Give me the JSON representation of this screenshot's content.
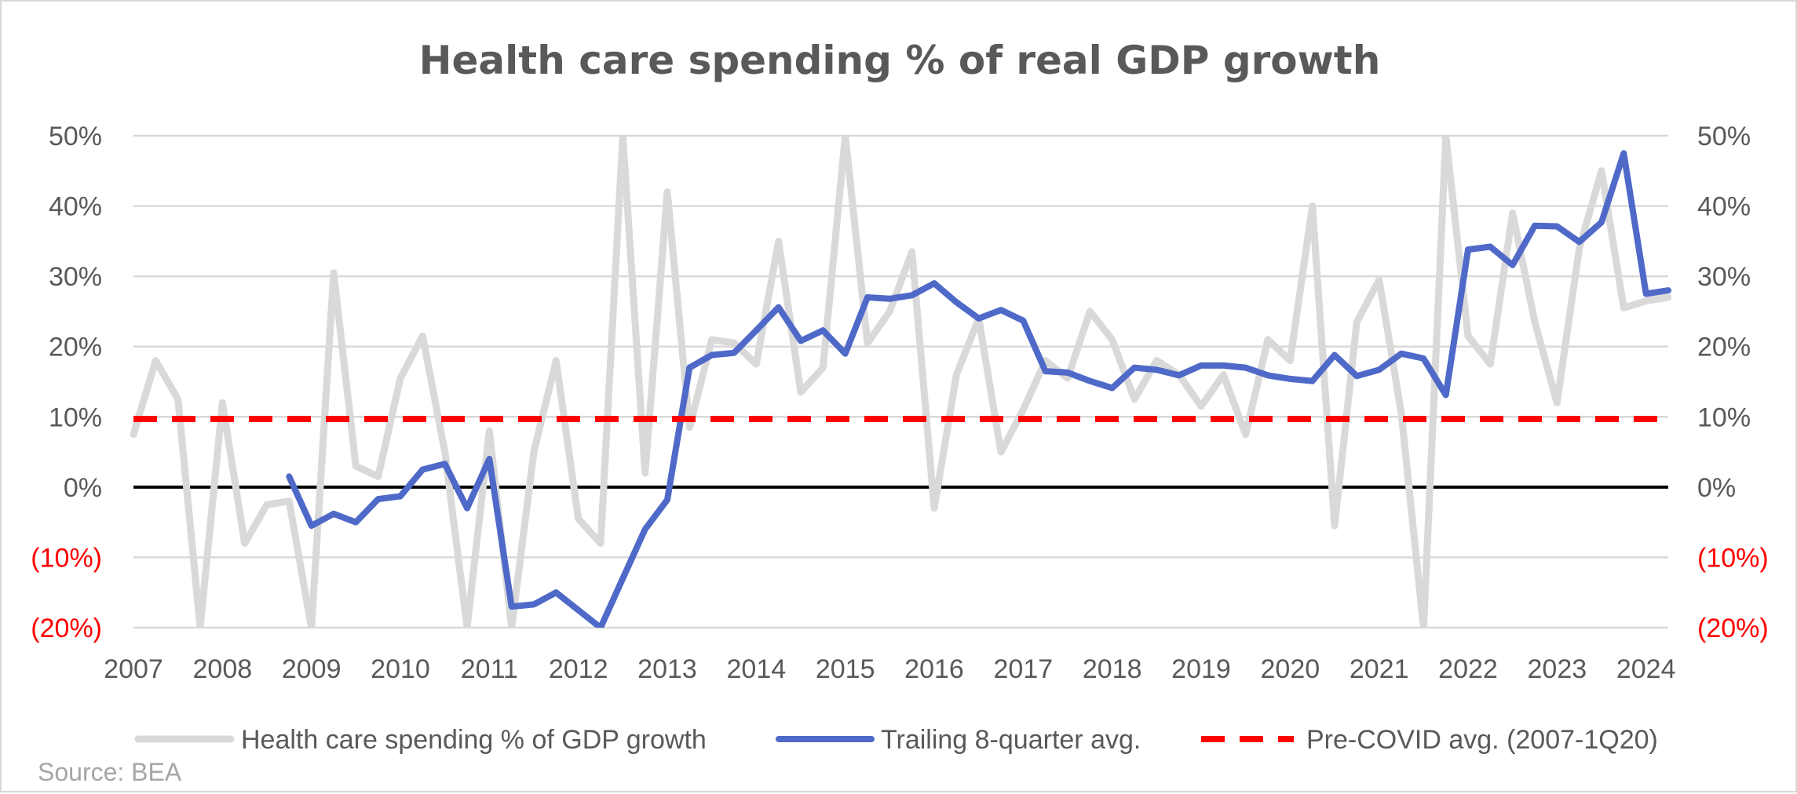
{
  "chart_data": {
    "type": "line",
    "title": "Health care spending % of real GDP growth",
    "source": "Source: BEA",
    "ylim": [
      -20,
      50
    ],
    "xlim": [
      2007,
      2024.25
    ],
    "y_ticks_left": [
      "(20%)",
      "(10%)",
      "0%",
      "10%",
      "20%",
      "30%",
      "40%",
      "50%"
    ],
    "y_ticks_right": [
      "(20%)",
      "(10%)",
      "0%",
      "10%",
      "20%",
      "30%",
      "40%",
      "50%"
    ],
    "y_tick_values": [
      -20,
      -10,
      0,
      10,
      20,
      30,
      40,
      50
    ],
    "x_ticks": [
      "2007",
      "2008",
      "2009",
      "2010",
      "2011",
      "2012",
      "2013",
      "2014",
      "2015",
      "2016",
      "2017",
      "2018",
      "2019",
      "2020",
      "2021",
      "2022",
      "2023",
      "2024"
    ],
    "x_tick_values": [
      2007,
      2008,
      2009,
      2010,
      2011,
      2012,
      2013,
      2014,
      2015,
      2016,
      2017,
      2018,
      2019,
      2020,
      2021,
      2022,
      2023,
      2024
    ],
    "grid": true,
    "legend_position": "bottom",
    "series": [
      {
        "name": "Health care spending % of GDP growth",
        "color": "#d9d9d9",
        "style": "solid",
        "x": [
          2007,
          2007.25,
          2007.5,
          2007.75,
          2008,
          2008.25,
          2008.5,
          2008.75,
          2009,
          2009.25,
          2009.5,
          2009.75,
          2010,
          2010.25,
          2010.5,
          2010.75,
          2011,
          2011.25,
          2011.5,
          2011.75,
          2012,
          2012.25,
          2012.5,
          2012.75,
          2013,
          2013.25,
          2013.5,
          2013.75,
          2014,
          2014.25,
          2014.5,
          2014.75,
          2015,
          2015.25,
          2015.5,
          2015.75,
          2016,
          2016.25,
          2016.5,
          2016.75,
          2017,
          2017.25,
          2017.5,
          2017.75,
          2018,
          2018.25,
          2018.5,
          2018.75,
          2019,
          2019.25,
          2019.5,
          2019.75,
          2020,
          2020.25,
          2020.5,
          2020.75,
          2021,
          2021.25,
          2021.5,
          2021.75,
          2022,
          2022.25,
          2022.5,
          2022.75,
          2023,
          2023.25,
          2023.5,
          2023.75,
          2024,
          2024.25
        ],
        "values": [
          7.5,
          18,
          12.5,
          -20,
          12,
          -8,
          -2.5,
          -2,
          -20,
          30.5,
          3,
          1.5,
          15.5,
          21.5,
          5,
          -20,
          8,
          -20,
          5,
          18,
          -4.5,
          -8,
          50,
          2,
          42,
          8.5,
          21,
          20.5,
          17.5,
          35,
          13.5,
          17,
          50,
          20.5,
          25,
          33.5,
          -3,
          16,
          24,
          5,
          11,
          18,
          15.5,
          25,
          21,
          12.5,
          18,
          16,
          11.5,
          16,
          7.5,
          21,
          18,
          40,
          -5.5,
          23.5,
          29.5,
          10.5,
          -20,
          50,
          21.5,
          17.5,
          39,
          23.5,
          12,
          34,
          45,
          25.5,
          26.5,
          27
        ]
      },
      {
        "name": "Trailing 8-quarter avg.",
        "color": "#4e69c8",
        "style": "solid",
        "x": [
          2008.75,
          2009,
          2009.25,
          2009.5,
          2009.75,
          2010,
          2010.25,
          2010.5,
          2010.75,
          2011,
          2011.25,
          2011.5,
          2011.75,
          2012,
          2012.25,
          2012.5,
          2012.75,
          2013,
          2013.25,
          2013.5,
          2013.75,
          2014,
          2014.25,
          2014.5,
          2014.75,
          2015,
          2015.25,
          2015.5,
          2015.75,
          2016,
          2016.25,
          2016.5,
          2016.75,
          2017,
          2017.25,
          2017.5,
          2017.75,
          2018,
          2018.25,
          2018.5,
          2018.75,
          2019,
          2019.25,
          2019.5,
          2019.75,
          2020,
          2020.25,
          2020.5,
          2020.75,
          2021,
          2021.25,
          2021.5,
          2021.75,
          2022,
          2022.25,
          2022.5,
          2022.75,
          2023,
          2023.25,
          2023.5,
          2023.75,
          2024,
          2024.25
        ],
        "values": [
          1.5,
          -5.5,
          -3.8,
          -5,
          -1.7,
          -1.3,
          2.5,
          3.3,
          -3,
          4,
          -17,
          -16.7,
          -15,
          -17.5,
          -21,
          -13,
          -6,
          -1.8,
          17,
          18.8,
          19.1,
          22.3,
          25.6,
          20.8,
          22.3,
          19,
          27,
          26.8,
          27.3,
          29,
          26.3,
          24,
          25.2,
          23.7,
          16.5,
          16.3,
          15.1,
          14.1,
          17,
          16.7,
          15.9,
          17.3,
          17.3,
          17,
          15.9,
          15.4,
          15.1,
          18.8,
          15.8,
          16.7,
          19,
          18.3,
          13.1,
          33.8,
          34.2,
          31.6,
          37.2,
          37.1,
          34.9,
          37.7,
          47.5,
          27.5,
          28
        ]
      },
      {
        "name": "Pre-COVID avg. (2007-1Q20)",
        "color": "#ff0000",
        "style": "dashed",
        "x": [
          2007,
          2024.25
        ],
        "values": [
          9.7,
          9.7
        ]
      }
    ]
  }
}
